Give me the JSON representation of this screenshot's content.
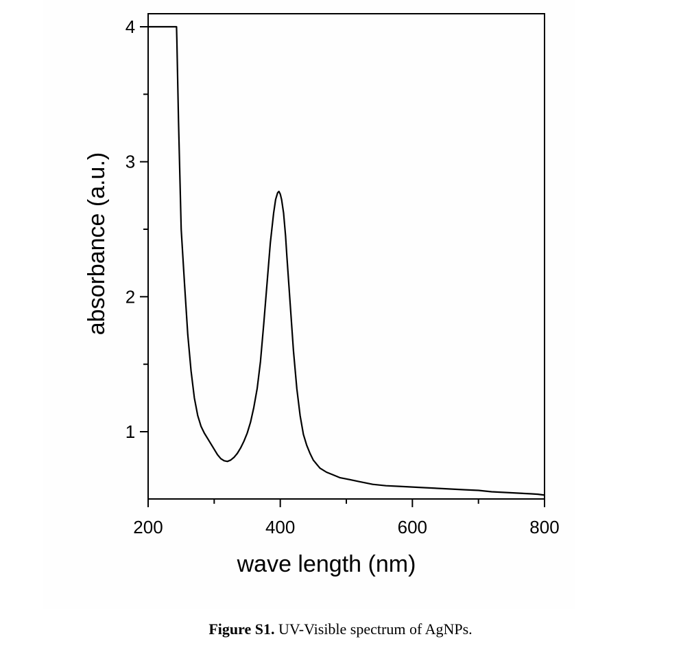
{
  "chart_data": {
    "type": "line",
    "xlabel": "wave length (nm)",
    "ylabel": "absorbance (a.u.)",
    "xlim": [
      200,
      800
    ],
    "ylim": [
      0.5,
      4.1
    ],
    "xticks": [
      200,
      400,
      600,
      800
    ],
    "yticks": [
      1,
      2,
      3,
      4
    ],
    "grid": false,
    "series": [
      {
        "x": [
          200,
          243,
          243.5,
          246,
          250,
          255,
          260,
          265,
          270,
          275,
          280,
          285,
          290,
          295,
          300,
          305,
          310,
          315,
          320,
          325,
          330,
          335,
          340,
          345,
          350,
          355,
          360,
          365,
          370,
          375,
          380,
          385,
          390,
          393,
          396,
          398,
          400,
          402,
          405,
          408,
          410,
          415,
          420,
          425,
          430,
          435,
          440,
          445,
          450,
          455,
          460,
          470,
          480,
          490,
          500,
          520,
          540,
          560,
          580,
          600,
          620,
          640,
          660,
          680,
          700,
          720,
          740,
          760,
          780,
          790,
          800
        ],
        "y": [
          4.0,
          4.0,
          3.9,
          3.3,
          2.5,
          2.1,
          1.72,
          1.45,
          1.25,
          1.12,
          1.04,
          0.99,
          0.95,
          0.91,
          0.87,
          0.83,
          0.8,
          0.785,
          0.78,
          0.79,
          0.81,
          0.84,
          0.88,
          0.93,
          0.99,
          1.07,
          1.18,
          1.32,
          1.52,
          1.8,
          2.1,
          2.4,
          2.62,
          2.72,
          2.77,
          2.78,
          2.76,
          2.72,
          2.62,
          2.45,
          2.3,
          1.95,
          1.6,
          1.32,
          1.12,
          0.98,
          0.9,
          0.84,
          0.79,
          0.76,
          0.73,
          0.7,
          0.68,
          0.66,
          0.65,
          0.63,
          0.61,
          0.6,
          0.595,
          0.59,
          0.585,
          0.58,
          0.575,
          0.57,
          0.565,
          0.555,
          0.55,
          0.545,
          0.54,
          0.537,
          0.53
        ]
      }
    ]
  },
  "caption": {
    "label": "Figure S1.",
    "text": " UV-Visible spectrum of AgNPs."
  }
}
